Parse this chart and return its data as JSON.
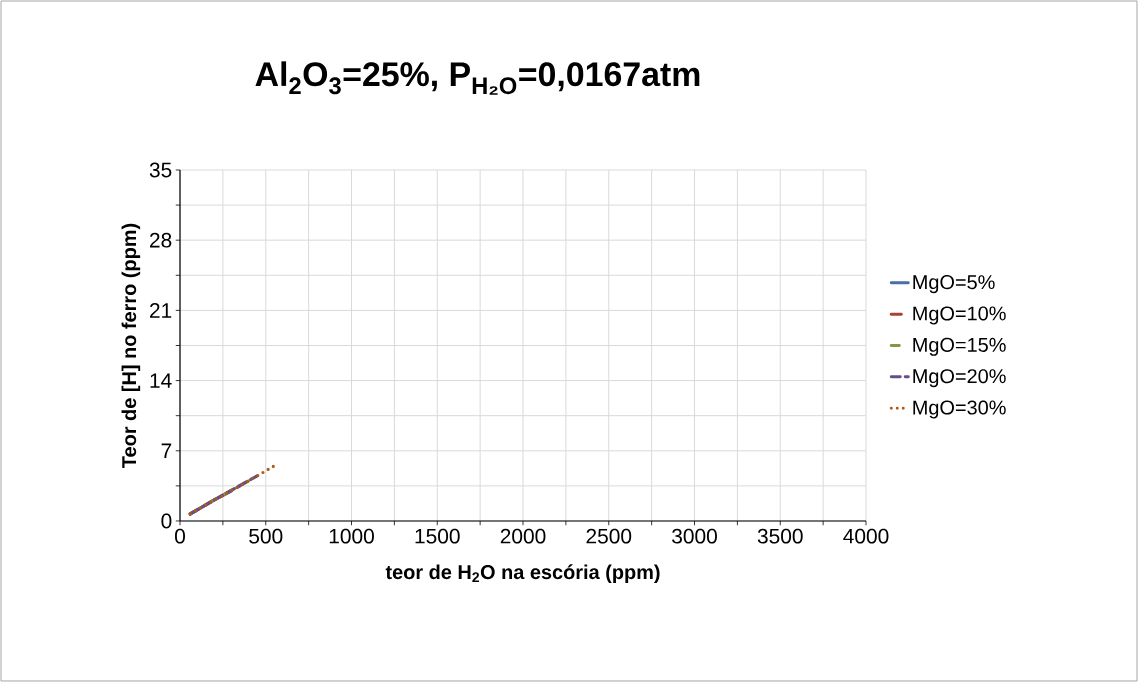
{
  "chart_data": {
    "type": "line",
    "title": "Al$_{2}$O$_{3}$=25%, P$_{H₂O}$=0,0167atm",
    "xlabel": "teor de H$_{2}$O na escória (ppm)",
    "ylabel": "Teor de [H] no ferro (ppm)",
    "xlim": [
      0,
      4000
    ],
    "ylim": [
      0,
      35
    ],
    "xticks": [
      0,
      {
        "value": 250,
        "label": null
      },
      500,
      {
        "value": 750,
        "label": null
      },
      1000,
      {
        "value": 1250,
        "label": null
      },
      1500,
      {
        "value": 1750,
        "label": null
      },
      2000,
      {
        "value": 2250,
        "label": null
      },
      2500,
      {
        "value": 2750,
        "label": null
      },
      3000,
      {
        "value": 3250,
        "label": null
      },
      3500,
      {
        "value": 3750,
        "label": null
      },
      4000
    ],
    "yticks": [
      0,
      {
        "value": 3.5,
        "label": null
      },
      7,
      {
        "value": 10.5,
        "label": null
      },
      14,
      {
        "value": 17.5,
        "label": null
      },
      21,
      {
        "value": 24.5,
        "label": null
      },
      28,
      {
        "value": 31.5,
        "label": null
      },
      35
    ],
    "grid": true,
    "legend": "right",
    "series": [
      {
        "name": "MgO=5%",
        "color": "#4a6fa5",
        "line_style": "solid",
        "x": [
          60,
          200,
          300
        ],
        "values": [
          0.7,
          2.1,
          3.0
        ]
      },
      {
        "name": "MgO=10%",
        "color": "#a5403c",
        "line_style": "dashdot",
        "x": [
          60,
          200,
          350
        ],
        "values": [
          0.7,
          2.1,
          3.5
        ]
      },
      {
        "name": "MgO=15%",
        "color": "#7f9a41",
        "line_style": "dashdotdot",
        "x": [
          60,
          200,
          400
        ],
        "values": [
          0.7,
          2.1,
          4.0
        ]
      },
      {
        "name": "MgO=20%",
        "color": "#634f8c",
        "line_style": "dashed",
        "x": [
          60,
          200,
          450
        ],
        "values": [
          0.7,
          2.1,
          4.5
        ]
      },
      {
        "name": "MgO=30%",
        "color": "#b05a16",
        "line_style": "dotted",
        "x": [
          60,
          200,
          350,
          450,
          570
        ],
        "values": [
          0.7,
          2.1,
          3.5,
          4.5,
          5.7
        ]
      }
    ]
  }
}
